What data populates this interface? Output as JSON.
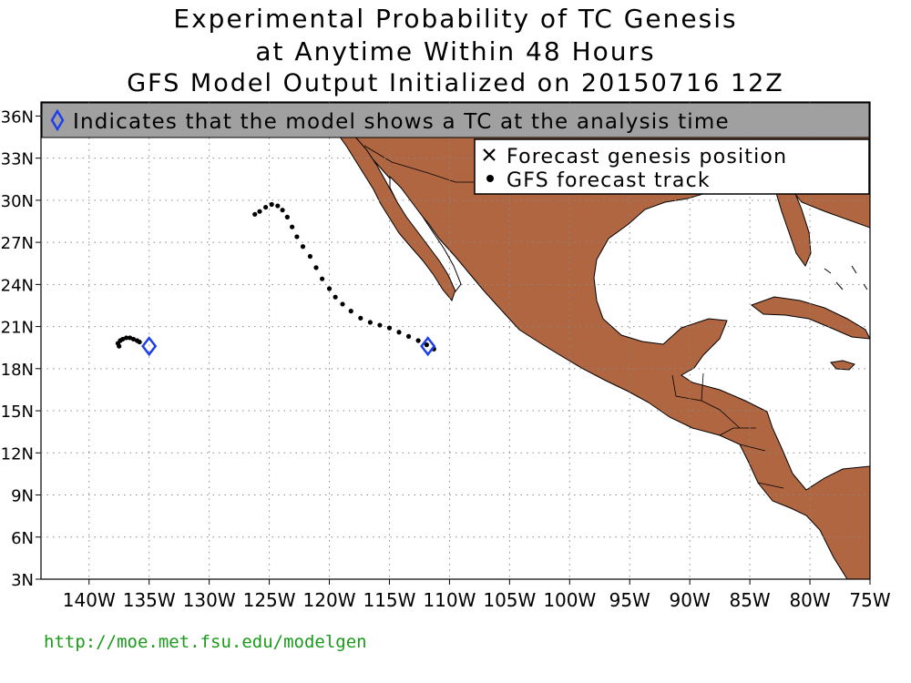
{
  "title": {
    "line1": "Experimental Probability of TC Genesis",
    "line2": "at Anytime Within 48 Hours",
    "line3": "GFS Model Output Initialized on 20150716 12Z"
  },
  "banner": {
    "text": "Indicates that the model shows a TC at the analysis time"
  },
  "legend": {
    "genesis_label": "Forecast genesis position",
    "track_label": "GFS forecast track"
  },
  "axes": {
    "lon_range": [
      -144,
      -75
    ],
    "lat_range": [
      3,
      37
    ],
    "lon_ticks": [
      {
        "value": -140,
        "label": "140W"
      },
      {
        "value": -135,
        "label": "135W"
      },
      {
        "value": -130,
        "label": "130W"
      },
      {
        "value": -125,
        "label": "125W"
      },
      {
        "value": -120,
        "label": "120W"
      },
      {
        "value": -115,
        "label": "115W"
      },
      {
        "value": -110,
        "label": "110W"
      },
      {
        "value": -105,
        "label": "105W"
      },
      {
        "value": -100,
        "label": "100W"
      },
      {
        "value": -95,
        "label": "95W"
      },
      {
        "value": -90,
        "label": "90W"
      },
      {
        "value": -85,
        "label": "85W"
      },
      {
        "value": -80,
        "label": "80W"
      },
      {
        "value": -75,
        "label": "75W"
      }
    ],
    "lat_ticks": [
      {
        "value": 3,
        "label": "3N"
      },
      {
        "value": 6,
        "label": "6N"
      },
      {
        "value": 9,
        "label": "9N"
      },
      {
        "value": 12,
        "label": "12N"
      },
      {
        "value": 15,
        "label": "15N"
      },
      {
        "value": 18,
        "label": "18N"
      },
      {
        "value": 21,
        "label": "21N"
      },
      {
        "value": 24,
        "label": "24N"
      },
      {
        "value": 27,
        "label": "27N"
      },
      {
        "value": 30,
        "label": "30N"
      },
      {
        "value": 33,
        "label": "33N"
      },
      {
        "value": 36,
        "label": "36N"
      }
    ]
  },
  "analysis_tcs": [
    {
      "lon": -135.0,
      "lat": 19.6
    },
    {
      "lon": -111.8,
      "lat": 19.6
    }
  ],
  "tracks": [
    {
      "points": [
        [
          -137.5,
          19.6
        ],
        [
          -137.6,
          19.8
        ],
        [
          -137.4,
          20.0
        ],
        [
          -137.2,
          20.1
        ],
        [
          -136.9,
          20.2
        ],
        [
          -136.6,
          20.2
        ],
        [
          -136.3,
          20.1
        ],
        [
          -136.0,
          20.0
        ],
        [
          -135.8,
          19.9
        ]
      ]
    },
    {
      "points": [
        [
          -111.3,
          19.4
        ],
        [
          -111.9,
          19.7
        ],
        [
          -112.6,
          20.0
        ],
        [
          -113.4,
          20.3
        ],
        [
          -114.2,
          20.6
        ],
        [
          -115.0,
          20.9
        ],
        [
          -115.8,
          21.1
        ],
        [
          -116.6,
          21.3
        ],
        [
          -117.4,
          21.6
        ],
        [
          -118.2,
          22.1
        ],
        [
          -118.9,
          22.6
        ],
        [
          -119.5,
          23.1
        ],
        [
          -120.0,
          23.7
        ],
        [
          -120.6,
          24.4
        ],
        [
          -121.1,
          25.2
        ],
        [
          -121.6,
          26.0
        ],
        [
          -122.2,
          26.7
        ],
        [
          -122.7,
          27.4
        ],
        [
          -123.1,
          28.1
        ],
        [
          -123.5,
          28.8
        ],
        [
          -123.9,
          29.3
        ],
        [
          -124.3,
          29.6
        ],
        [
          -124.8,
          29.7
        ],
        [
          -125.3,
          29.5
        ],
        [
          -125.8,
          29.2
        ],
        [
          -126.2,
          29.0
        ]
      ]
    }
  ],
  "colors": {
    "land": "#b06641",
    "banner_bg": "#a0a0a0",
    "diamond": "#1f3fe8",
    "url": "#1a9a1a"
  },
  "footer": {
    "url": "http://moe.met.fsu.edu/modelgen"
  }
}
